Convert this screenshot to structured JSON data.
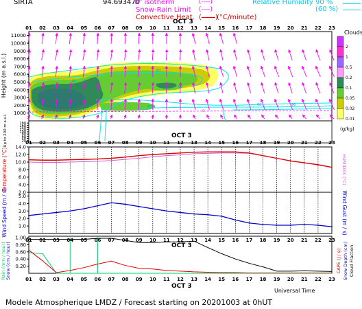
{
  "header": {
    "station": "SIRTA",
    "id_number": "94.693470",
    "isotherm_label": "0° isotherm",
    "isotherm_key": "(----)",
    "snow_rain_label": "Snow-Rain Limit",
    "snow_rain_key": "(----)",
    "convective_label": "Convective Heat.",
    "convective_unit": "(°C/minute)",
    "humidity_label": "Relative Humidity",
    "humidity_90": "90 %",
    "humidity_60": "(60 %)"
  },
  "footer": {
    "forecast_text": "Modele Atmospherique LMDZ / Forecast starting on 20201003 at 0hUT",
    "universal_time": "Universal Time"
  },
  "colors": {
    "isotherm": "#ff00ff",
    "humidity": "#00e5ee",
    "temperature": "#dd0000",
    "humidex": "#cc66cc",
    "wind": "#0000cc",
    "rain": "#00cc66",
    "cape": "#dd0000",
    "cloud_fraction": "#000000"
  },
  "chart_data": [
    {
      "type": "heatmap",
      "name": "clouds",
      "ylabel": "Height (m a.s.l.)",
      "ylabel2": "Up to 200 m a.s.l.",
      "day_label": "OCT 3",
      "hours": [
        "01",
        "02",
        "03",
        "04",
        "05",
        "06",
        "07",
        "08",
        "09",
        "10",
        "11",
        "12",
        "13",
        "14",
        "15",
        "16",
        "17",
        "18",
        "19",
        "20",
        "21",
        "22",
        "23"
      ],
      "y_ticks_upper": [
        1000,
        2000,
        3000,
        4000,
        5000,
        6000,
        7000,
        8000,
        9000,
        10000,
        11000
      ],
      "y_ticks_lower": [
        20,
        40,
        60,
        80,
        100,
        120,
        140,
        160,
        180
      ],
      "colorbar": {
        "title": "Clouds",
        "unit": "(g/kg)",
        "levels": [
          "2",
          "1",
          "0.5",
          "0.2",
          "0.1",
          "0.05",
          "0.02",
          "0.01"
        ],
        "colors": [
          "#cc33ff",
          "#ff33cc",
          "#9966ff",
          "#ff99ff",
          "#2e8b57",
          "#66cc33",
          "#cccc00",
          "#ffff66"
        ]
      },
      "humidity_labels": [
        "60",
        "60",
        "60",
        "60",
        "60",
        "90"
      ],
      "isotherm_label": "0"
    },
    {
      "type": "line",
      "name": "temperature",
      "ylabel": "Temperature (°C)",
      "ylabel2": "HUMIDEX (°C)",
      "day_label": "OCT 3",
      "hours": [
        "01",
        "02",
        "03",
        "04",
        "05",
        "06",
        "07",
        "08",
        "09",
        "10",
        "11",
        "12",
        "13",
        "14",
        "15",
        "16",
        "17",
        "18",
        "19",
        "20",
        "21",
        "22",
        "23"
      ],
      "y_ticks": [
        "2.0",
        "4.0",
        "6.0",
        "8.0",
        "10.0",
        "12.0",
        "14.0"
      ],
      "ylim": [
        2,
        14
      ],
      "series": [
        {
          "name": "Temperature",
          "values": [
            10.6,
            10.5,
            10.5,
            10.6,
            10.7,
            10.8,
            11.0,
            11.3,
            11.7,
            12.0,
            12.2,
            12.4,
            12.6,
            12.7,
            12.7,
            12.7,
            12.4,
            11.7,
            11.0,
            10.3,
            9.8,
            9.3,
            8.6
          ]
        },
        {
          "name": "HUMIDEX",
          "values": [
            10.0,
            9.9,
            9.9,
            10.0,
            10.1,
            10.2,
            10.4,
            10.7,
            11.0,
            11.4,
            11.7,
            11.9,
            12.2,
            12.3,
            12.4,
            12.4,
            12.3,
            11.7,
            11.0,
            10.3,
            9.8,
            9.2,
            8.6
          ]
        }
      ]
    },
    {
      "type": "line",
      "name": "wind",
      "ylabel": "Wind Speed (m / s)",
      "ylabel2": "Wind Gust (m / s)",
      "hours": [
        "01",
        "02",
        "03",
        "04",
        "05",
        "06",
        "07",
        "08",
        "09",
        "10",
        "11",
        "12",
        "13",
        "14",
        "15",
        "16",
        "17",
        "18",
        "19",
        "20",
        "21",
        "22",
        "23"
      ],
      "y_ticks": [
        "1.0",
        "2.0",
        "3.0",
        "4.0",
        "5.0"
      ],
      "ylim": [
        0,
        5.5
      ],
      "series": [
        {
          "name": "Wind Speed",
          "values": [
            2.4,
            2.6,
            2.8,
            3.0,
            3.3,
            3.7,
            4.1,
            3.9,
            3.6,
            3.3,
            3.0,
            2.8,
            2.6,
            2.5,
            2.3,
            1.8,
            1.4,
            1.2,
            1.1,
            1.1,
            1.2,
            1.1,
            0.9
          ]
        }
      ]
    },
    {
      "type": "line",
      "name": "precipitation",
      "ylabel": "Rain (mm / hour)",
      "ylabel_mid": "Snow (cm / hour)",
      "ylabel_right": "CAPE (J / g)",
      "ylabel_right2": "Snow Depth (cm)",
      "ylabel_right3": "Cloud Fraction",
      "day_label": "OCT 3",
      "hours": [
        "01",
        "02",
        "03",
        "04",
        "05",
        "06",
        "07",
        "08",
        "09",
        "10",
        "11",
        "12",
        "13",
        "14",
        "15",
        "16",
        "17",
        "18",
        "19",
        "20",
        "21",
        "22",
        "23"
      ],
      "y_ticks": [
        "0.20",
        "0.40",
        "0.60",
        "0.80",
        "1.00"
      ],
      "ylim": [
        0,
        1
      ],
      "series": [
        {
          "name": "CAPE",
          "values": [
            0.65,
            0.35,
            0.02,
            0.08,
            0.16,
            0.26,
            0.34,
            0.22,
            0.14,
            0.12,
            0.08,
            0.06,
            0.04,
            0.03,
            0.02,
            0.02,
            0.01,
            0.01,
            0.01,
            0.01,
            0.01,
            0.01,
            0.01
          ]
        },
        {
          "name": "Cloud Fraction",
          "values": [
            0.95,
            0.95,
            0.95,
            0.95,
            0.95,
            0.98,
            0.98,
            0.92,
            0.86,
            0.86,
            0.88,
            0.88,
            0.9,
            0.72,
            0.55,
            0.4,
            0.28,
            0.18,
            0.06,
            0.06,
            0.07,
            0.06,
            0.05
          ]
        },
        {
          "name": "Rain",
          "values": [
            0.58,
            0.55,
            0,
            0,
            0,
            0,
            0,
            0,
            0,
            0,
            0,
            0,
            0,
            0,
            0,
            0,
            0,
            0,
            0,
            0,
            0,
            0,
            0
          ]
        }
      ]
    }
  ]
}
